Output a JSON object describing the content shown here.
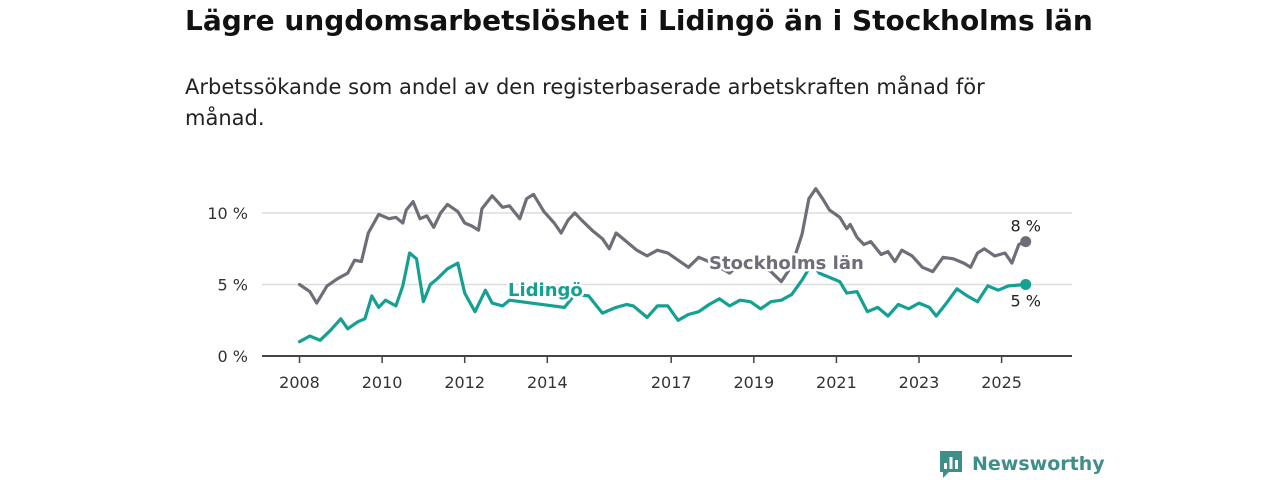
{
  "title": "Lägre ungdomsarbetslöshet i Lidingö än i Stockholms län",
  "subtitle": "Arbetssökande som andel av den registerbaserade arbetskraften månad för månad.",
  "brand": {
    "name": "Newsworthy",
    "icon": "newsworthy-logo-icon"
  },
  "colors": {
    "stockholm": "#6e6e78",
    "lidingo": "#14a092",
    "grid": "#dddddd",
    "axis": "#444444"
  },
  "chart_data": {
    "type": "line",
    "x_ticks": [
      "2008",
      "2010",
      "2012",
      "2014",
      "2017",
      "2019",
      "2021",
      "2023",
      "2025"
    ],
    "y_ticks": [
      "0 %",
      "5 %",
      "10 %"
    ],
    "ylim": [
      0,
      12
    ],
    "xlim": [
      "2008-01",
      "2025-12"
    ],
    "grid": true,
    "series": [
      {
        "name": "Stockholms län",
        "end_label": "8 %",
        "points": [
          [
            "2008-01",
            5.0
          ],
          [
            "2008-04",
            4.5
          ],
          [
            "2008-06",
            3.7
          ],
          [
            "2008-09",
            4.9
          ],
          [
            "2008-12",
            5.4
          ],
          [
            "2009-03",
            5.8
          ],
          [
            "2009-05",
            6.7
          ],
          [
            "2009-07",
            6.6
          ],
          [
            "2009-09",
            8.6
          ],
          [
            "2009-12",
            9.9
          ],
          [
            "2010-03",
            9.6
          ],
          [
            "2010-05",
            9.7
          ],
          [
            "2010-07",
            9.3
          ],
          [
            "2010-08",
            10.2
          ],
          [
            "2010-10",
            10.8
          ],
          [
            "2010-12",
            9.6
          ],
          [
            "2011-02",
            9.8
          ],
          [
            "2011-04",
            9.0
          ],
          [
            "2011-06",
            10.0
          ],
          [
            "2011-08",
            10.6
          ],
          [
            "2011-11",
            10.1
          ],
          [
            "2012-01",
            9.3
          ],
          [
            "2012-03",
            9.1
          ],
          [
            "2012-05",
            8.8
          ],
          [
            "2012-06",
            10.3
          ],
          [
            "2012-09",
            11.2
          ],
          [
            "2012-12",
            10.4
          ],
          [
            "2013-02",
            10.5
          ],
          [
            "2013-05",
            9.6
          ],
          [
            "2013-07",
            11.0
          ],
          [
            "2013-09",
            11.3
          ],
          [
            "2013-12",
            10.1
          ],
          [
            "2014-03",
            9.3
          ],
          [
            "2014-05",
            8.6
          ],
          [
            "2014-07",
            9.5
          ],
          [
            "2014-09",
            10.0
          ],
          [
            "2014-11",
            9.5
          ],
          [
            "2015-02",
            8.8
          ],
          [
            "2015-05",
            8.2
          ],
          [
            "2015-07",
            7.5
          ],
          [
            "2015-09",
            8.6
          ],
          [
            "2015-12",
            8.0
          ],
          [
            "2016-03",
            7.4
          ],
          [
            "2016-06",
            7.0
          ],
          [
            "2016-09",
            7.4
          ],
          [
            "2016-12",
            7.2
          ],
          [
            "2017-03",
            6.7
          ],
          [
            "2017-06",
            6.2
          ],
          [
            "2017-09",
            6.9
          ],
          [
            "2017-12",
            6.6
          ],
          [
            "2018-03",
            6.2
          ],
          [
            "2018-06",
            5.8
          ],
          [
            "2018-09",
            6.5
          ],
          [
            "2018-12",
            6.1
          ],
          [
            "2019-03",
            6.3
          ],
          [
            "2019-06",
            5.9
          ],
          [
            "2019-09",
            5.2
          ],
          [
            "2019-12",
            6.3
          ],
          [
            "2020-03",
            8.5
          ],
          [
            "2020-05",
            11.0
          ],
          [
            "2020-07",
            11.7
          ],
          [
            "2020-09",
            11.0
          ],
          [
            "2020-11",
            10.2
          ],
          [
            "2021-02",
            9.7
          ],
          [
            "2021-04",
            8.9
          ],
          [
            "2021-05",
            9.2
          ],
          [
            "2021-07",
            8.3
          ],
          [
            "2021-09",
            7.8
          ],
          [
            "2021-11",
            8.0
          ],
          [
            "2022-02",
            7.1
          ],
          [
            "2022-04",
            7.3
          ],
          [
            "2022-06",
            6.6
          ],
          [
            "2022-08",
            7.4
          ],
          [
            "2022-11",
            7.0
          ],
          [
            "2023-02",
            6.2
          ],
          [
            "2023-05",
            5.9
          ],
          [
            "2023-08",
            6.9
          ],
          [
            "2023-11",
            6.8
          ],
          [
            "2024-02",
            6.5
          ],
          [
            "2024-04",
            6.2
          ],
          [
            "2024-06",
            7.2
          ],
          [
            "2024-08",
            7.5
          ],
          [
            "2024-11",
            7.0
          ],
          [
            "2025-02",
            7.2
          ],
          [
            "2025-04",
            6.5
          ],
          [
            "2025-06",
            7.8
          ],
          [
            "2025-08",
            8.0
          ]
        ]
      },
      {
        "name": "Lidingö",
        "end_label": "5 %",
        "points": [
          [
            "2008-01",
            1.0
          ],
          [
            "2008-04",
            1.4
          ],
          [
            "2008-07",
            1.1
          ],
          [
            "2008-10",
            1.8
          ],
          [
            "2009-01",
            2.6
          ],
          [
            "2009-03",
            1.9
          ],
          [
            "2009-06",
            2.4
          ],
          [
            "2009-08",
            2.6
          ],
          [
            "2009-10",
            4.2
          ],
          [
            "2009-12",
            3.4
          ],
          [
            "2010-02",
            3.9
          ],
          [
            "2010-05",
            3.5
          ],
          [
            "2010-07",
            4.9
          ],
          [
            "2010-09",
            7.2
          ],
          [
            "2010-11",
            6.8
          ],
          [
            "2011-01",
            3.8
          ],
          [
            "2011-03",
            5.0
          ],
          [
            "2011-05",
            5.4
          ],
          [
            "2011-08",
            6.1
          ],
          [
            "2011-11",
            6.5
          ],
          [
            "2012-01",
            4.4
          ],
          [
            "2012-04",
            3.1
          ],
          [
            "2012-07",
            4.6
          ],
          [
            "2012-09",
            3.7
          ],
          [
            "2012-12",
            3.5
          ],
          [
            "2013-02",
            3.9
          ],
          [
            "2014-06",
            3.4
          ],
          [
            "2014-09",
            4.3
          ],
          [
            "2015-01",
            4.2
          ],
          [
            "2015-05",
            3.0
          ],
          [
            "2015-09",
            3.4
          ],
          [
            "2015-12",
            3.6
          ],
          [
            "2016-02",
            3.5
          ],
          [
            "2016-06",
            2.7
          ],
          [
            "2016-09",
            3.5
          ],
          [
            "2016-12",
            3.5
          ],
          [
            "2017-03",
            2.5
          ],
          [
            "2017-06",
            2.9
          ],
          [
            "2017-09",
            3.1
          ],
          [
            "2017-12",
            3.6
          ],
          [
            "2018-03",
            4.0
          ],
          [
            "2018-06",
            3.5
          ],
          [
            "2018-09",
            3.9
          ],
          [
            "2018-12",
            3.8
          ],
          [
            "2019-03",
            3.3
          ],
          [
            "2019-06",
            3.8
          ],
          [
            "2019-09",
            3.9
          ],
          [
            "2019-12",
            4.3
          ],
          [
            "2020-03",
            5.3
          ],
          [
            "2020-06",
            6.5
          ],
          [
            "2020-08",
            5.8
          ],
          [
            "2020-11",
            5.5
          ],
          [
            "2021-02",
            5.2
          ],
          [
            "2021-04",
            4.4
          ],
          [
            "2021-07",
            4.5
          ],
          [
            "2021-10",
            3.1
          ],
          [
            "2022-01",
            3.4
          ],
          [
            "2022-04",
            2.8
          ],
          [
            "2022-07",
            3.6
          ],
          [
            "2022-10",
            3.3
          ],
          [
            "2023-01",
            3.7
          ],
          [
            "2023-04",
            3.4
          ],
          [
            "2023-06",
            2.8
          ],
          [
            "2023-09",
            3.7
          ],
          [
            "2023-12",
            4.7
          ],
          [
            "2024-03",
            4.2
          ],
          [
            "2024-06",
            3.8
          ],
          [
            "2024-09",
            4.9
          ],
          [
            "2024-12",
            4.6
          ],
          [
            "2025-03",
            4.9
          ],
          [
            "2025-08",
            5.0
          ]
        ]
      }
    ]
  }
}
